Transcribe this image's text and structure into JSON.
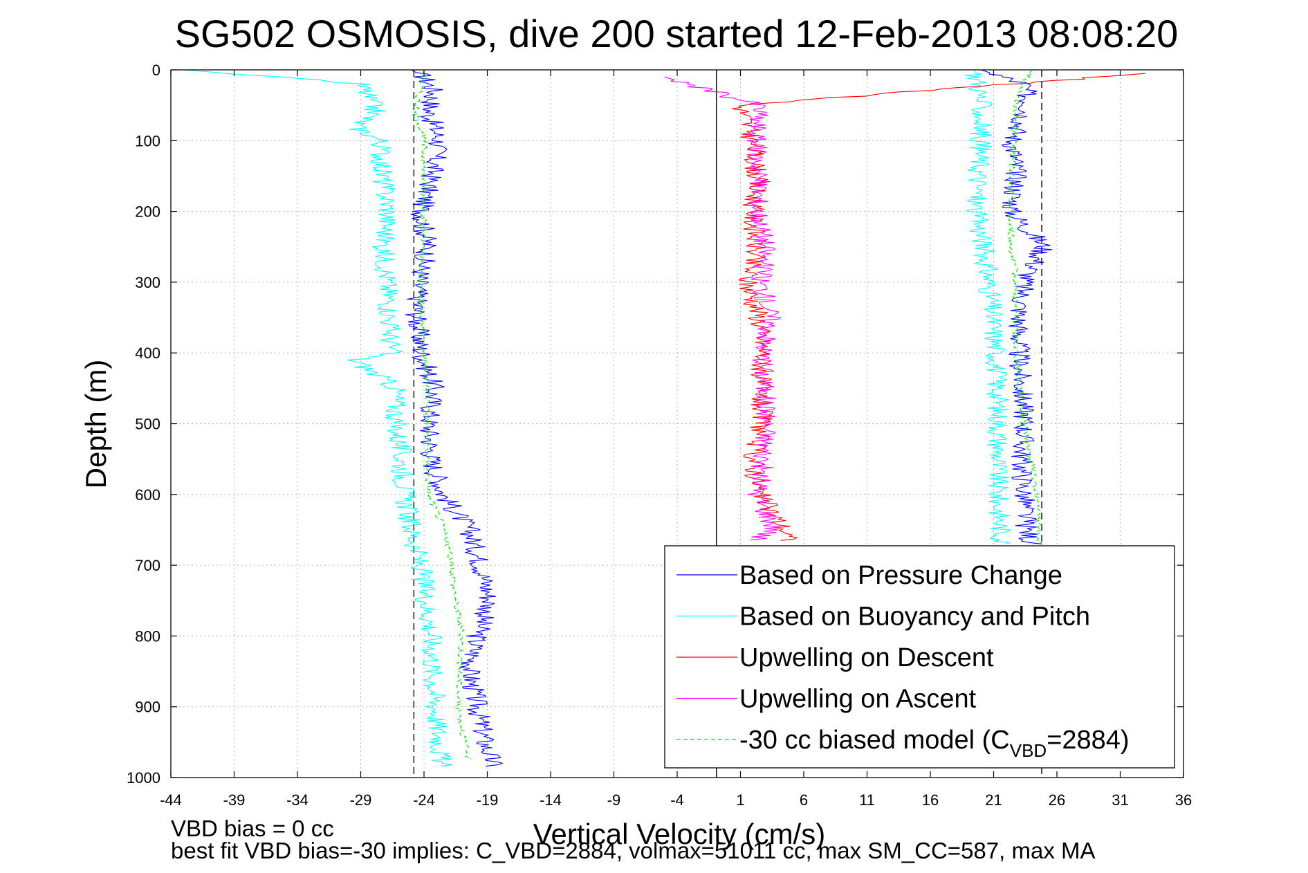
{
  "chart_data": {
    "type": "line",
    "title": "SG502 OSMOSIS, dive 200 started 12-Feb-2013 08:08:20",
    "xlabel": "Vertical Velocity (cm/s)",
    "ylabel": "Depth (m)",
    "xlim": [
      -44,
      36
    ],
    "ylim": [
      0,
      1000
    ],
    "y_reversed": true,
    "grid": true,
    "x_ticks": [
      -44,
      -39,
      -34,
      -29,
      -24,
      -19,
      -14,
      -9,
      -4,
      1,
      6,
      11,
      16,
      21,
      26,
      31,
      36
    ],
    "y_ticks": [
      0,
      100,
      200,
      300,
      400,
      500,
      600,
      700,
      800,
      900,
      1000
    ],
    "legend_position": "bottom-right",
    "legend": [
      {
        "label": "Based on Pressure Change",
        "color": "#0000ff",
        "dash": false
      },
      {
        "label": "Based on Buoyancy and Pitch",
        "color": "#00ffff",
        "dash": false
      },
      {
        "label": "Upwelling on Descent",
        "color": "#ff0000",
        "dash": false
      },
      {
        "label": "Upwelling on Ascent",
        "color": "#ff00ff",
        "dash": false
      },
      {
        "label_prefix": "-30 cc biased model (C",
        "label_sub": "VBD",
        "label_suffix": "=2884)",
        "color": "#00dd00",
        "dash": true
      }
    ],
    "reference_lines": [
      {
        "x": -24.8,
        "style": "dashed",
        "color": "#000000"
      },
      {
        "x": 24.8,
        "style": "dashed",
        "color": "#000000"
      },
      {
        "x": -0.9,
        "style": "solid",
        "color": "#000000"
      }
    ],
    "series": [
      {
        "name": "Based on Pressure Change",
        "color": "#0000ff",
        "profiles": [
          {
            "depth": [
              0,
              10,
              30,
              60,
              100,
              150,
              200,
              250,
              300,
              350,
              400,
              450,
              500,
              550,
              600,
              650,
              700,
              750,
              800,
              850,
              900,
              950,
              985
            ],
            "velocity": [
              -25,
              -24,
              -23.2,
              -23.6,
              -22.8,
              -23.4,
              -24.2,
              -23.7,
              -24.4,
              -24.6,
              -24.2,
              -23.2,
              -23.6,
              -23.4,
              -22.5,
              -20.4,
              -19.5,
              -18.8,
              -19.8,
              -20.4,
              -19.8,
              -19.2,
              -18.5
            ]
          },
          {
            "depth": [
              0,
              20,
              50,
              100,
              150,
              200,
              250,
              300,
              350,
              400,
              450,
              500,
              550,
              600,
              650,
              670
            ],
            "velocity": [
              20,
              23.4,
              23.8,
              22.5,
              22.8,
              22.4,
              25,
              23.4,
              23,
              23,
              23.2,
              23.5,
              23.2,
              23.4,
              23.6,
              24
            ]
          }
        ]
      },
      {
        "name": "Based on Buoyancy and Pitch",
        "color": "#00ffff",
        "profiles": [
          {
            "depth": [
              0,
              20,
              60,
              80,
              100,
              150,
              200,
              250,
              300,
              350,
              400,
              410,
              450,
              500,
              550,
              600,
              650,
              700,
              750,
              800,
              850,
              900,
              950,
              985
            ],
            "velocity": [
              -43,
              -29,
              -27.8,
              -29.5,
              -27.4,
              -27.3,
              -26.8,
              -27.2,
              -26.9,
              -26.7,
              -26.6,
              -29.5,
              -26.2,
              -26.2,
              -25.8,
              -25.5,
              -25,
              -24.3,
              -23.8,
              -23.4,
              -23.3,
              -23.1,
              -22.8,
              -22.6
            ]
          },
          {
            "depth": [
              0,
              20,
              50,
              100,
              150,
              200,
              250,
              300,
              400,
              500,
              600,
              670
            ],
            "velocity": [
              19.5,
              19.8,
              20,
              20,
              19.8,
              19.6,
              20.2,
              20.6,
              21.2,
              21.4,
              21.3,
              21.7
            ]
          }
        ]
      },
      {
        "name": "Upwelling on Descent",
        "color": "#ff0000",
        "profiles": [
          {
            "depth": [
              5,
              50,
              100,
              150,
              200,
              250,
              300,
              350,
              400,
              450,
              500,
              550,
              600,
              650,
              665
            ],
            "velocity": [
              33,
              1,
              2,
              2.3,
              2,
              2.2,
              1.5,
              2.5,
              2.8,
              2.5,
              2.7,
              2,
              2.5,
              4.5,
              4.8
            ]
          }
        ]
      },
      {
        "name": "Upwelling on Ascent",
        "color": "#ff00ff",
        "profiles": [
          {
            "depth": [
              10,
              50,
              100,
              150,
              200,
              250,
              300,
              350,
              400,
              450,
              500,
              550,
              600,
              650,
              665
            ],
            "velocity": [
              -5,
              2.5,
              2.2,
              2.5,
              2.4,
              3,
              2.6,
              3.4,
              2.8,
              2.9,
              3.1,
              2.8,
              2.4,
              3.7,
              2
            ]
          }
        ]
      },
      {
        "name": "-30 cc biased model (CVBD=2884)",
        "color": "#00dd00",
        "dash": true,
        "profiles": [
          {
            "depth": [
              0,
              20,
              60,
              100,
              200,
              300,
              400,
              480,
              500,
              600,
              650,
              700,
              750,
              800,
              850,
              900,
              950,
              975
            ],
            "velocity": [
              -24,
              -24.2,
              -24.7,
              -24,
              -24,
              -24.3,
              -24,
              -23.6,
              -23.8,
              -23.6,
              -22.4,
              -21.8,
              -21.5,
              -21,
              -21.2,
              -21.3,
              -20.8,
              -20.5
            ]
          },
          {
            "depth": [
              0,
              40,
              100,
              150,
              200,
              250,
              300,
              350,
              400,
              500,
              600,
              650,
              670
            ],
            "velocity": [
              24,
              22.8,
              22.6,
              22.4,
              22.3,
              22.4,
              22.8,
              22.7,
              22.8,
              23.4,
              24.4,
              24.6,
              24.6
            ]
          }
        ]
      }
    ]
  },
  "footer": {
    "line1": "VBD bias = 0 cc",
    "line2": "best fit VBD bias=-30 implies: C_VBD=2884, volmax=51011 cc, max SM_CC=587, max MA"
  }
}
